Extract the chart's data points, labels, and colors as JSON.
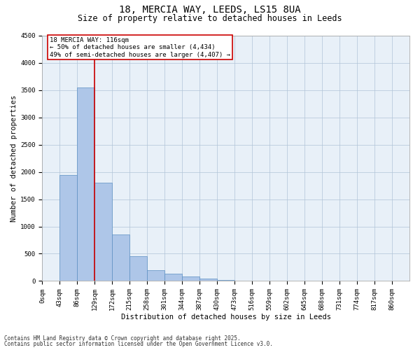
{
  "title_line1": "18, MERCIA WAY, LEEDS, LS15 8UA",
  "title_line2": "Size of property relative to detached houses in Leeds",
  "xlabel": "Distribution of detached houses by size in Leeds",
  "ylabel": "Number of detached properties",
  "categories": [
    "0sqm",
    "43sqm",
    "86sqm",
    "129sqm",
    "172sqm",
    "215sqm",
    "258sqm",
    "301sqm",
    "344sqm",
    "387sqm",
    "430sqm",
    "473sqm",
    "516sqm",
    "559sqm",
    "602sqm",
    "645sqm",
    "688sqm",
    "731sqm",
    "774sqm",
    "817sqm",
    "860sqm"
  ],
  "bar_heights": [
    0,
    1950,
    3550,
    1800,
    850,
    450,
    200,
    130,
    80,
    40,
    20,
    10,
    5,
    3,
    2,
    1,
    0,
    0,
    0,
    0,
    0
  ],
  "bar_color": "#aec6e8",
  "bar_edge_color": "#5a8fc2",
  "vline_color": "#cc0000",
  "annotation_text": "18 MERCIA WAY: 116sqm\n← 50% of detached houses are smaller (4,434)\n49% of semi-detached houses are larger (4,407) →",
  "annotation_box_color": "#cc0000",
  "ylim": [
    0,
    4500
  ],
  "yticks": [
    0,
    500,
    1000,
    1500,
    2000,
    2500,
    3000,
    3500,
    4000,
    4500
  ],
  "grid_color": "#b0c4d8",
  "bg_color": "#e8f0f8",
  "footer_line1": "Contains HM Land Registry data © Crown copyright and database right 2025.",
  "footer_line2": "Contains public sector information licensed under the Open Government Licence v3.0.",
  "title1_fontsize": 10,
  "title2_fontsize": 8.5,
  "axis_label_fontsize": 7.5,
  "tick_fontsize": 6.5,
  "footer_fontsize": 5.5,
  "annotation_fontsize": 6.5
}
